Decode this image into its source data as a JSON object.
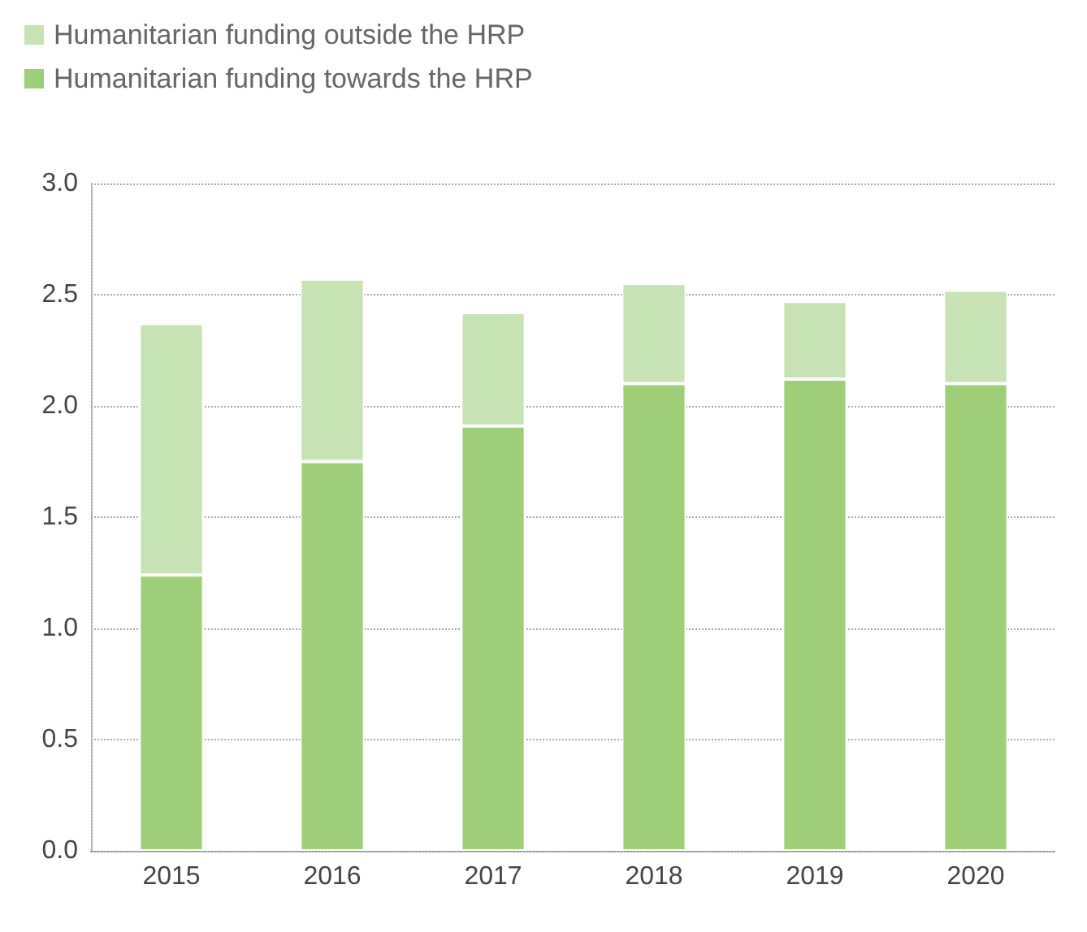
{
  "chart_data": {
    "type": "bar",
    "stacked": true,
    "categories": [
      "2015",
      "2016",
      "2017",
      "2018",
      "2019",
      "2020"
    ],
    "series": [
      {
        "name": "Humanitarian funding towards the HRP",
        "color": "#9ccf78",
        "values": [
          1.24,
          1.75,
          1.91,
          2.1,
          2.12,
          2.1
        ]
      },
      {
        "name": "Humanitarian funding outside the HRP",
        "color": "#c8e3b3",
        "values": [
          1.13,
          0.82,
          0.51,
          0.45,
          0.35,
          0.42
        ]
      }
    ],
    "ylim": [
      0,
      3.0
    ],
    "yticks": [
      {
        "value": 0,
        "label": "0.0"
      },
      {
        "value": 0.5,
        "label": "0.5"
      },
      {
        "value": 1,
        "label": "1.0"
      },
      {
        "value": 1.5,
        "label": "1.5"
      },
      {
        "value": 2,
        "label": "2.0"
      },
      {
        "value": 2.5,
        "label": "2.5"
      },
      {
        "value": 3,
        "label": "3.0"
      }
    ],
    "grid": "y",
    "legend": "top left"
  }
}
